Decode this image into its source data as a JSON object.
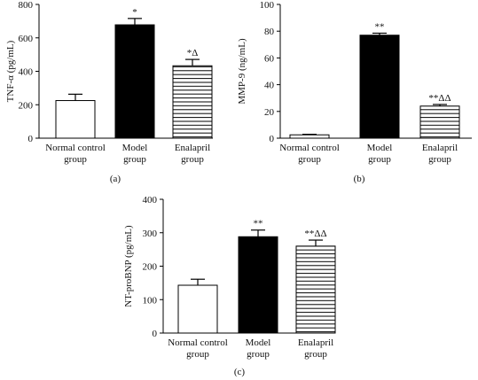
{
  "colors": {
    "normal": "#ffffff",
    "model": "#000000",
    "enalapril_hatch": "#000000",
    "axis": "#000000"
  },
  "chart_data": [
    {
      "type": "bar",
      "panel_label": "(a)",
      "ylabel": "TNF-α (pg/mL)",
      "ylim": [
        0,
        800
      ],
      "yticks": [
        0,
        200,
        400,
        600,
        800
      ],
      "categories": [
        [
          "Normal control",
          "group"
        ],
        [
          "Model",
          "group"
        ],
        [
          "Enalapril",
          "group"
        ]
      ],
      "values": [
        225,
        678,
        433
      ],
      "errors": [
        38,
        38,
        38
      ],
      "annotations": [
        "",
        "*",
        "*Δ"
      ],
      "fills": [
        "white",
        "black",
        "hatch"
      ]
    },
    {
      "type": "bar",
      "panel_label": "(b)",
      "ylabel": "MMP-9 (ng/mL)",
      "ylim": [
        0,
        100
      ],
      "yticks": [
        0,
        20,
        40,
        60,
        80,
        100
      ],
      "categories": [
        [
          "Normal control",
          "group"
        ],
        [
          "Model",
          "group"
        ],
        [
          "Enalapril",
          "group"
        ]
      ],
      "values": [
        2.5,
        77,
        24
      ],
      "errors": [
        0.4,
        1.5,
        1.2
      ],
      "annotations": [
        "",
        "**",
        "**ΔΔ"
      ],
      "fills": [
        "white",
        "black",
        "hatch"
      ]
    },
    {
      "type": "bar",
      "panel_label": "(c)",
      "ylabel": "NT-proBNP (pg/mL)",
      "ylim": [
        0,
        400
      ],
      "yticks": [
        0,
        100,
        200,
        300,
        400
      ],
      "categories": [
        [
          "Normal control",
          "group"
        ],
        [
          "Model",
          "group"
        ],
        [
          "Enalapril",
          "group"
        ]
      ],
      "values": [
        143,
        288,
        260
      ],
      "errors": [
        18,
        20,
        18
      ],
      "annotations": [
        "",
        "**",
        "**ΔΔ"
      ],
      "fills": [
        "white",
        "black",
        "hatch"
      ]
    }
  ]
}
